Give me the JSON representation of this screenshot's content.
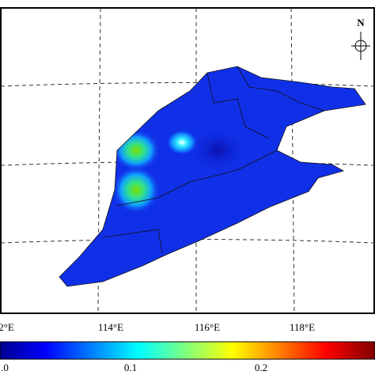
{
  "longitude_labels": [
    "2°E",
    "114°E",
    "116°E",
    "118°E"
  ],
  "colorbar": {
    "labels": [
      ".0",
      "0.1",
      "0.2"
    ]
  },
  "north_label": "N"
}
